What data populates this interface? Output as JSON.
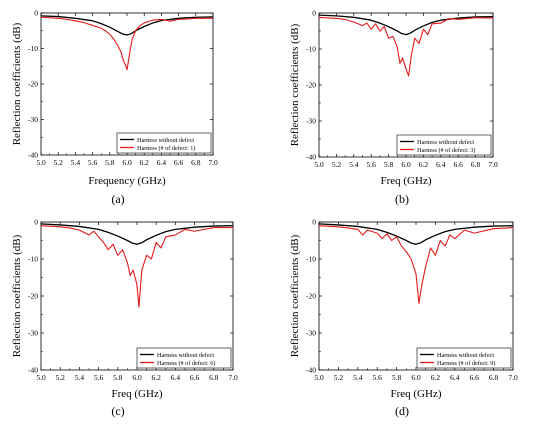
{
  "chart_data": [
    {
      "type": "line",
      "caption": "(a)",
      "xlabel": "Frequency (GHz)",
      "ylabel": "Reflection coefficients (dB)",
      "xlim": [
        5.0,
        7.0
      ],
      "ylim": [
        -40,
        0
      ],
      "xticks": [
        "5.0",
        "5.2",
        "5.4",
        "5.6",
        "5.8",
        "6.0",
        "6.2",
        "6.4",
        "6.6",
        "6.8",
        "7.0"
      ],
      "yticks": [
        "0",
        "-10",
        "-20",
        "-30",
        "-40"
      ],
      "grid": false,
      "legend_position": "bottom-right",
      "colors": {
        "reference": "#000000",
        "defect": "#e41a1c"
      },
      "series": [
        {
          "name": "Harness without defect",
          "x": [
            5.0,
            5.2,
            5.4,
            5.6,
            5.7,
            5.8,
            5.9,
            5.95,
            6.0,
            6.05,
            6.1,
            6.2,
            6.3,
            6.4,
            6.6,
            6.8,
            7.0
          ],
          "y": [
            -0.8,
            -1.0,
            -1.5,
            -2.2,
            -3.0,
            -4.0,
            -5.3,
            -5.9,
            -6.2,
            -5.8,
            -5.0,
            -3.8,
            -2.8,
            -2.1,
            -1.5,
            -1.2,
            -1.1
          ]
        },
        {
          "name": "Harness (# of defect: 1)",
          "x": [
            5.0,
            5.2,
            5.3,
            5.4,
            5.5,
            5.6,
            5.7,
            5.75,
            5.8,
            5.85,
            5.9,
            5.93,
            5.96,
            5.98,
            6.0,
            6.02,
            6.04,
            6.06,
            6.1,
            6.15,
            6.2,
            6.3,
            6.4,
            6.5,
            6.6,
            6.8,
            7.0
          ],
          "y": [
            -1.2,
            -1.5,
            -1.8,
            -2.2,
            -2.7,
            -3.5,
            -4.3,
            -5.0,
            -6.0,
            -7.5,
            -9.5,
            -11.0,
            -13.5,
            -14.5,
            -16.0,
            -13.0,
            -10.0,
            -7.5,
            -5.0,
            -3.6,
            -2.8,
            -2.0,
            -1.8,
            -2.3,
            -1.8,
            -1.5,
            -1.5
          ]
        }
      ]
    },
    {
      "type": "line",
      "caption": "(b)",
      "xlabel": "Freq (GHz)",
      "ylabel": "Reflection coefficients (dB)",
      "xlim": [
        5.0,
        7.0
      ],
      "ylim": [
        -40,
        0
      ],
      "xticks": [
        "5.0",
        "5.2",
        "5.4",
        "5.6",
        "5.8",
        "6.0",
        "6.2",
        "6.4",
        "6.6",
        "6.8",
        "7.0"
      ],
      "yticks": [
        "0",
        "-10",
        "-20",
        "-30",
        "-40"
      ],
      "grid": false,
      "legend_position": "bottom-right",
      "colors": {
        "reference": "#000000",
        "defect": "#e41a1c"
      },
      "series": [
        {
          "name": "Harness without defect",
          "x": [
            5.0,
            5.2,
            5.4,
            5.6,
            5.7,
            5.8,
            5.9,
            5.95,
            6.0,
            6.05,
            6.1,
            6.2,
            6.3,
            6.4,
            6.6,
            6.8,
            7.0
          ],
          "y": [
            -0.6,
            -0.8,
            -1.2,
            -2.0,
            -2.8,
            -3.8,
            -5.0,
            -5.7,
            -6.0,
            -5.6,
            -4.8,
            -3.6,
            -2.6,
            -2.0,
            -1.4,
            -1.1,
            -1.0
          ]
        },
        {
          "name": "Harness (# of defect: 3)",
          "x": [
            5.0,
            5.2,
            5.3,
            5.4,
            5.5,
            5.55,
            5.6,
            5.65,
            5.7,
            5.75,
            5.8,
            5.85,
            5.9,
            5.93,
            5.96,
            6.0,
            6.03,
            6.06,
            6.1,
            6.15,
            6.2,
            6.25,
            6.3,
            6.4,
            6.5,
            6.6,
            6.8,
            7.0
          ],
          "y": [
            -1.2,
            -1.5,
            -1.8,
            -2.5,
            -3.5,
            -2.8,
            -4.5,
            -3.0,
            -5.0,
            -3.8,
            -7.0,
            -6.5,
            -9.5,
            -14.0,
            -12.5,
            -15.5,
            -17.5,
            -12.0,
            -7.0,
            -8.5,
            -4.5,
            -6.0,
            -3.0,
            -2.8,
            -1.5,
            -1.8,
            -1.3,
            -1.4
          ]
        }
      ]
    },
    {
      "type": "line",
      "caption": "(c)",
      "xlabel": "Freq (GHz)",
      "ylabel": "Reflection coefficients (dB)",
      "xlim": [
        5.0,
        7.0
      ],
      "ylim": [
        -40,
        0
      ],
      "xticks": [
        "5.0",
        "5.2",
        "5.4",
        "5.6",
        "5.8",
        "6.0",
        "6.2",
        "6.4",
        "6.6",
        "6.8",
        "7.0"
      ],
      "yticks": [
        "0",
        "-10",
        "-20",
        "-30",
        "-40"
      ],
      "grid": false,
      "legend_position": "bottom-right",
      "colors": {
        "reference": "#000000",
        "defect": "#e41a1c"
      },
      "series": [
        {
          "name": "Harness without defect",
          "x": [
            5.0,
            5.2,
            5.4,
            5.6,
            5.7,
            5.8,
            5.9,
            5.95,
            6.0,
            6.05,
            6.1,
            6.2,
            6.3,
            6.4,
            6.6,
            6.8,
            7.0
          ],
          "y": [
            -0.5,
            -0.8,
            -1.2,
            -2.0,
            -2.8,
            -3.8,
            -5.0,
            -5.7,
            -6.0,
            -5.6,
            -4.8,
            -3.6,
            -2.6,
            -2.0,
            -1.4,
            -1.1,
            -1.0
          ]
        },
        {
          "name": "Harness (# of defect: 6)",
          "x": [
            5.0,
            5.2,
            5.3,
            5.4,
            5.5,
            5.55,
            5.6,
            5.65,
            5.7,
            5.75,
            5.8,
            5.85,
            5.9,
            5.93,
            5.96,
            6.0,
            6.02,
            6.05,
            6.1,
            6.15,
            6.2,
            6.25,
            6.3,
            6.4,
            6.5,
            6.6,
            6.8,
            7.0
          ],
          "y": [
            -1.0,
            -1.3,
            -1.6,
            -2.2,
            -3.5,
            -2.5,
            -4.0,
            -5.5,
            -7.5,
            -6.0,
            -9.0,
            -7.5,
            -11.0,
            -14.5,
            -13.0,
            -17.0,
            -23.0,
            -13.0,
            -9.0,
            -10.0,
            -5.5,
            -7.0,
            -4.0,
            -3.5,
            -2.0,
            -2.5,
            -1.5,
            -1.5
          ]
        }
      ]
    },
    {
      "type": "line",
      "caption": "(d)",
      "xlabel": "Freq (GHz)",
      "ylabel": "Reflection coefficients (dB)",
      "xlim": [
        5.0,
        7.0
      ],
      "ylim": [
        -40,
        0
      ],
      "xticks": [
        "5.0",
        "5.2",
        "5.4",
        "5.6",
        "5.8",
        "6.0",
        "6.2",
        "6.4",
        "6.6",
        "6.8",
        "7.0"
      ],
      "yticks": [
        "0",
        "-10",
        "-20",
        "-30",
        "-40"
      ],
      "grid": false,
      "legend_position": "bottom-right",
      "colors": {
        "reference": "#000000",
        "defect": "#e41a1c"
      },
      "series": [
        {
          "name": "Harness without defect",
          "x": [
            5.0,
            5.2,
            5.4,
            5.6,
            5.7,
            5.8,
            5.9,
            5.95,
            6.0,
            6.05,
            6.1,
            6.2,
            6.3,
            6.4,
            6.6,
            6.8,
            7.0
          ],
          "y": [
            -0.5,
            -0.8,
            -1.2,
            -2.0,
            -2.8,
            -3.8,
            -5.0,
            -5.7,
            -6.0,
            -5.6,
            -4.8,
            -3.6,
            -2.6,
            -2.0,
            -1.4,
            -1.1,
            -1.0
          ]
        },
        {
          "name": "Harness (# of defect: 9)",
          "x": [
            5.0,
            5.2,
            5.3,
            5.4,
            5.45,
            5.5,
            5.6,
            5.65,
            5.7,
            5.75,
            5.8,
            5.85,
            5.9,
            5.95,
            6.0,
            6.03,
            6.06,
            6.1,
            6.15,
            6.2,
            6.25,
            6.3,
            6.35,
            6.4,
            6.5,
            6.6,
            6.8,
            7.0
          ],
          "y": [
            -1.0,
            -1.3,
            -1.6,
            -2.0,
            -3.5,
            -2.2,
            -3.0,
            -4.5,
            -3.2,
            -5.0,
            -4.0,
            -6.5,
            -8.0,
            -10.0,
            -14.0,
            -22.0,
            -17.0,
            -12.0,
            -7.0,
            -9.0,
            -5.0,
            -6.5,
            -3.5,
            -4.5,
            -2.2,
            -3.0,
            -1.8,
            -1.5
          ]
        }
      ]
    }
  ]
}
